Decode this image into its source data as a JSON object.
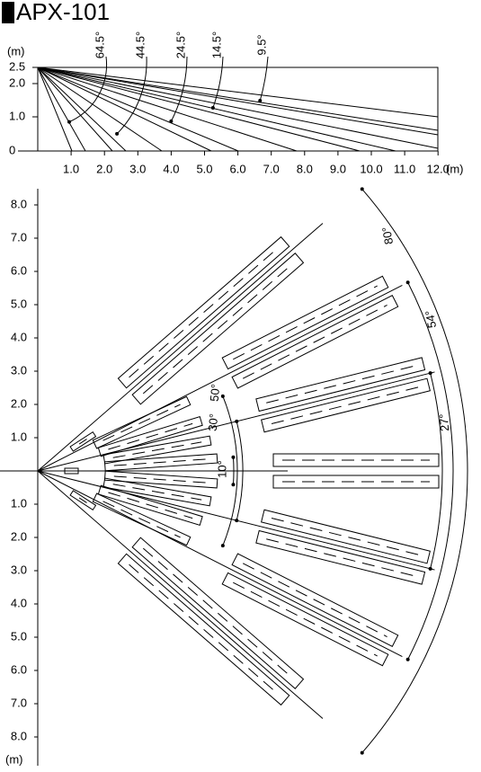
{
  "title": "APX-101",
  "side_view": {
    "y_unit": "(m)",
    "y_labels": [
      "2.5",
      "2.0",
      "1.0",
      "0"
    ],
    "angles": [
      "64.5°",
      "44.5°",
      "24.5°",
      "14.5°",
      "9.5°"
    ],
    "x_labels": [
      "1.0",
      "2.0",
      "3.0",
      "4.0",
      "5.0",
      "6.0",
      "7.0",
      "8.0",
      "9.0",
      "10.0",
      "11.0",
      "12.0"
    ],
    "x_unit": "(m)"
  },
  "top_view": {
    "y_labels_upper": [
      "8.0",
      "7.0",
      "6.0",
      "5.0",
      "4.0",
      "3.0",
      "2.0",
      "1.0"
    ],
    "y_labels_lower": [
      "1.0",
      "2.0",
      "3.0",
      "4.0",
      "5.0",
      "6.0",
      "7.0",
      "8.0"
    ],
    "y_unit": "(m)",
    "angles": [
      "80°",
      "54°",
      "27°",
      "50°",
      "30°",
      "10°"
    ]
  }
}
